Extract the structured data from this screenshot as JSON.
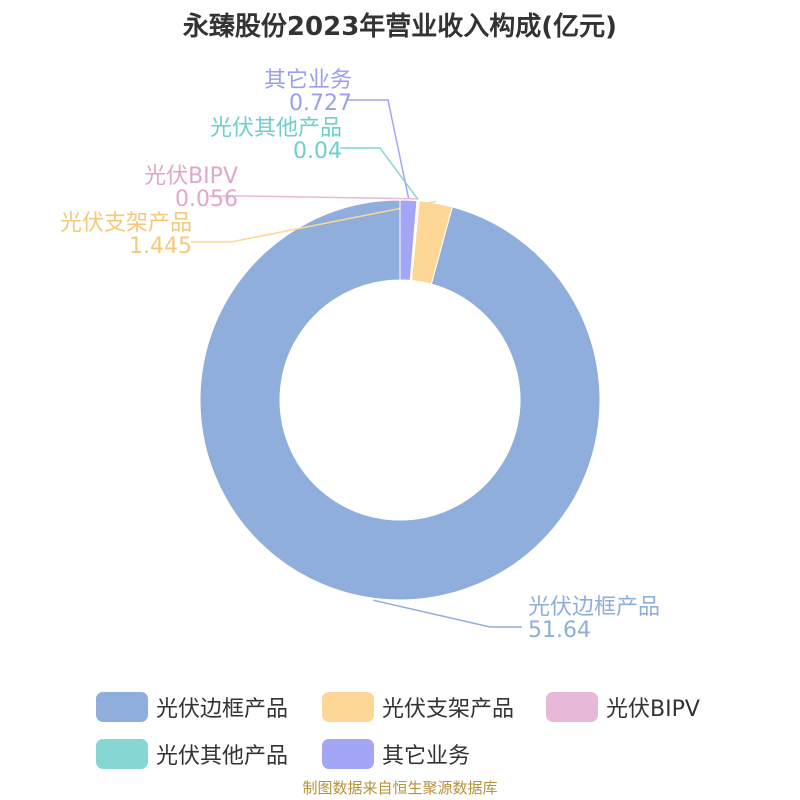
{
  "chart_data": {
    "type": "pie",
    "variant": "donut",
    "title": "永臻股份2023年营业收入构成(亿元)",
    "slices": [
      {
        "name": "光伏边框产品",
        "value": 51.64,
        "value_label": "51.64",
        "color": "#8faedb"
      },
      {
        "name": "光伏支架产品",
        "value": 1.445,
        "value_label": "1.445",
        "color": "#fdd795"
      },
      {
        "name": "光伏BIPV",
        "value": 0.056,
        "value_label": "0.056",
        "color": "#e8b8d8"
      },
      {
        "name": "光伏其他产品",
        "value": 0.04,
        "value_label": "0.04",
        "color": "#86d6d3"
      },
      {
        "name": "其它业务",
        "value": 0.727,
        "value_label": "0.727",
        "color": "#a3a6f4"
      }
    ],
    "start_angle": "top",
    "direction": "counterclockwise",
    "legend_position": "bottom"
  },
  "source": "制图数据来自恒生聚源数据库"
}
